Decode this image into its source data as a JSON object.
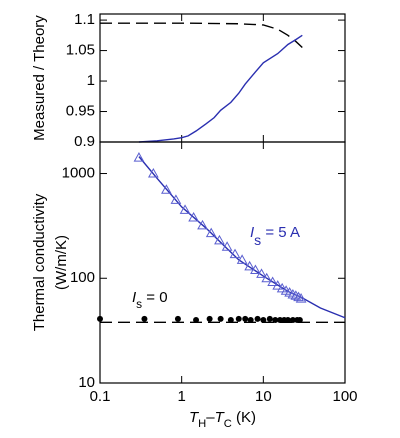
{
  "chart_data": [
    {
      "type": "line",
      "ylabel": [
        "Measured / Theory"
      ],
      "xscale": "log",
      "xlim": [
        0.1,
        100
      ],
      "xticks": [
        0.1,
        1,
        10,
        100
      ],
      "ylim": [
        0.9,
        1.11
      ],
      "yticks": [
        0.9,
        0.95,
        1,
        1.05,
        1.1
      ],
      "series": [
        {
          "color": "#000000",
          "line_style": "dashed",
          "x": [
            0.1,
            1,
            5,
            10,
            15,
            20,
            25,
            30
          ],
          "values": [
            1.095,
            1.095,
            1.094,
            1.092,
            1.085,
            1.075,
            1.065,
            1.055
          ]
        },
        {
          "color": "#2a2fb0",
          "line_style": "solid",
          "x": [
            0.3,
            0.5,
            0.8,
            1,
            1.2,
            1.5,
            2,
            2.5,
            3,
            4,
            5,
            6,
            8,
            10,
            15,
            20,
            25,
            30
          ],
          "values": [
            0.9,
            0.902,
            0.905,
            0.907,
            0.91,
            0.918,
            0.93,
            0.94,
            0.952,
            0.965,
            0.98,
            0.995,
            1.015,
            1.03,
            1.045,
            1.06,
            1.068,
            1.075
          ]
        }
      ]
    },
    {
      "type": "line",
      "ylabel": [
        "Thermal conductivity",
        "(W/m/K)"
      ],
      "xscale": "log",
      "yscale": "log",
      "xlabel": [
        {
          "text": "T",
          "style": "italic"
        },
        {
          "text": "H",
          "style": "sub"
        },
        {
          "text": "–",
          "style": "normal"
        },
        {
          "text": "T",
          "style": "italic"
        },
        {
          "text": "C",
          "style": "sub"
        },
        {
          "text": " (K)",
          "style": "normal"
        }
      ],
      "xlim": [
        0.1,
        100
      ],
      "xticks": [
        0.1,
        1,
        10,
        100
      ],
      "ylim": [
        10,
        2000
      ],
      "yticks": [
        10,
        100,
        1000
      ],
      "series": [
        {
          "color": "#000000",
          "line_style": "dashed",
          "x": [
            0.1,
            100
          ],
          "values": [
            38,
            38
          ]
        },
        {
          "color": "#2a2fb0",
          "line_style": "solid",
          "x": [
            0.3,
            0.5,
            1,
            2,
            3,
            5,
            10,
            20,
            30,
            50,
            100
          ],
          "values": [
            1450,
            900,
            480,
            300,
            220,
            150,
            105,
            75,
            65,
            52,
            42
          ]
        },
        {
          "color": "#5a5fd0",
          "marker": "triangle-open",
          "x": [
            0.3,
            0.45,
            0.65,
            0.85,
            1.1,
            1.4,
            1.8,
            2.3,
            2.9,
            3.6,
            4.5,
            5.5,
            6.8,
            8,
            9.5,
            11,
            13,
            15,
            17,
            19,
            21,
            23,
            25,
            27,
            29
          ],
          "values": [
            1420,
            1000,
            700,
            560,
            450,
            380,
            320,
            270,
            230,
            200,
            170,
            150,
            130,
            120,
            110,
            100,
            92,
            85,
            80,
            76,
            73,
            70,
            68,
            66,
            64
          ]
        },
        {
          "color": "#000000",
          "marker": "circle",
          "x": [
            0.1,
            0.35,
            0.9,
            1.5,
            2.2,
            3,
            4,
            5,
            6,
            7,
            8.5,
            10,
            12,
            14,
            16,
            18,
            20,
            23,
            26,
            28
          ],
          "values": [
            41,
            41,
            41,
            40,
            41,
            41,
            40,
            41,
            41,
            40,
            41,
            40,
            41,
            40,
            40,
            40,
            40,
            40,
            40,
            40
          ]
        }
      ],
      "annotations": [
        {
          "color": "#2a2fb0",
          "parts": [
            {
              "text": "I",
              "style": "italic"
            },
            {
              "text": "s",
              "style": "sub"
            },
            {
              "text": " = 5 A",
              "style": "normal"
            }
          ]
        },
        {
          "color": "#000000",
          "parts": [
            {
              "text": "I",
              "style": "italic"
            },
            {
              "text": "s",
              "style": "sub"
            },
            {
              "text": " = 0",
              "style": "normal"
            }
          ]
        }
      ]
    }
  ]
}
